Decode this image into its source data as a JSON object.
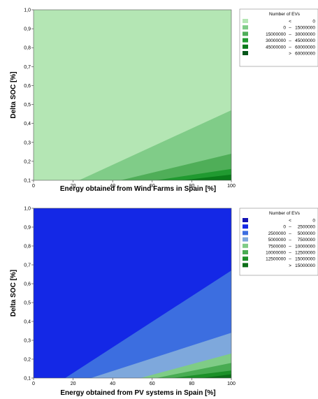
{
  "chart_data": [
    {
      "type": "contour",
      "xlabel": "Energy obtained from Wind Farms in Spain [%]",
      "ylabel": "Delta SOC [%]",
      "xlim": [
        0,
        100
      ],
      "ylim": [
        0.1,
        1.0
      ],
      "x_ticks": [
        "0",
        "20",
        "40",
        "60",
        "80",
        "100"
      ],
      "y_ticks": [
        "0,1",
        "0,2",
        "0,3",
        "0,4",
        "0,5",
        "0,6",
        "0,7",
        "0,8",
        "0,9",
        "1,0"
      ],
      "legend_title": "Number of EVs",
      "legend_position": "right",
      "legend": [
        {
          "from": "",
          "sep": "<",
          "to": "0",
          "color": "#b4e6b4"
        },
        {
          "from": "0",
          "sep": "–",
          "to": "15000000",
          "color": "#80cc88"
        },
        {
          "from": "15000000",
          "sep": "–",
          "to": "30000000",
          "color": "#4fae58"
        },
        {
          "from": "30000000",
          "sep": "–",
          "to": "45000000",
          "color": "#209a30"
        },
        {
          "from": "45000000",
          "sep": "–",
          "to": "60000000",
          "color": "#0a7a1a"
        },
        {
          "from": "",
          "sep": ">",
          "to": "60000000",
          "color": "#05561a"
        }
      ],
      "contour_boundaries": [
        {
          "band": 1,
          "points": [
            [
              23,
              0.1
            ],
            [
              100,
              0.47
            ]
          ]
        },
        {
          "band": 2,
          "points": [
            [
              44,
              0.1
            ],
            [
              100,
              0.24
            ]
          ]
        },
        {
          "band": 3,
          "points": [
            [
              62,
              0.1
            ],
            [
              100,
              0.16
            ]
          ]
        },
        {
          "band": 4,
          "points": [
            [
              75,
              0.1
            ],
            [
              100,
              0.13
            ]
          ]
        }
      ]
    },
    {
      "type": "contour",
      "xlabel": "Energy obtained from PV systems in Spain [%]",
      "ylabel": "Delta SOC [%]",
      "xlim": [
        0,
        100
      ],
      "ylim": [
        0.1,
        1.0
      ],
      "x_ticks": [
        "0",
        "20",
        "40",
        "60",
        "80",
        "100"
      ],
      "y_ticks": [
        "0,1",
        "0,2",
        "0,3",
        "0,4",
        "0,5",
        "0,6",
        "0,7",
        "0,8",
        "0,9",
        "1,0"
      ],
      "legend_title": "Number of EVs",
      "legend_position": "right",
      "legend": [
        {
          "from": "",
          "sep": "<",
          "to": "0",
          "color": "#1414b4"
        },
        {
          "from": "0",
          "sep": "–",
          "to": "2500000",
          "color": "#1428e6"
        },
        {
          "from": "2500000",
          "sep": "–",
          "to": "5000000",
          "color": "#3c6ee0"
        },
        {
          "from": "5000000",
          "sep": "–",
          "to": "7500000",
          "color": "#7ea8dc"
        },
        {
          "from": "7500000",
          "sep": "–",
          "to": "10000000",
          "color": "#7fcc86"
        },
        {
          "from": "10000000",
          "sep": "–",
          "to": "12500000",
          "color": "#48ac52"
        },
        {
          "from": "12500000",
          "sep": "–",
          "to": "15000000",
          "color": "#1c9028"
        },
        {
          "from": "",
          "sep": ">",
          "to": "15000000",
          "color": "#0c6e18"
        }
      ],
      "contour_boundaries": [
        {
          "band": 2,
          "points": [
            [
              16,
              0.1
            ],
            [
              100,
              0.67
            ]
          ]
        },
        {
          "band": 3,
          "points": [
            [
              29,
              0.1
            ],
            [
              100,
              0.34
            ]
          ]
        },
        {
          "band": 4,
          "points": [
            [
              54,
              0.1
            ],
            [
              100,
              0.23
            ]
          ]
        },
        {
          "band": 5,
          "points": [
            [
              62,
              0.1
            ],
            [
              100,
              0.18
            ]
          ]
        },
        {
          "band": 6,
          "points": [
            [
              70,
              0.1
            ],
            [
              100,
              0.14
            ]
          ]
        },
        {
          "band": 7,
          "points": [
            [
              85,
              0.1
            ],
            [
              100,
              0.12
            ]
          ]
        }
      ]
    }
  ]
}
